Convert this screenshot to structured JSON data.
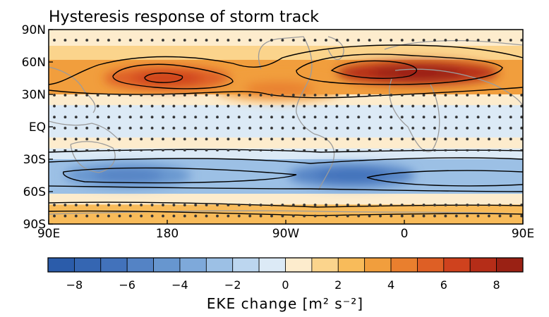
{
  "chart_data": {
    "type": "heatmap",
    "title": "Hysteresis response of storm track",
    "x_ticks": [
      "90E",
      "180",
      "90W",
      "0",
      "90E"
    ],
    "y_ticks": [
      "90N",
      "60N",
      "30N",
      "EQ",
      "30S",
      "60S",
      "90S"
    ],
    "colorbar": {
      "label": "EKE change [m² s⁻²]",
      "range": [
        -9,
        9
      ],
      "step": 1,
      "tick_values": [
        -8,
        -6,
        -4,
        -2,
        0,
        2,
        4,
        6,
        8
      ],
      "tick_labels": [
        "−8",
        "−6",
        "−4",
        "−2",
        "0",
        "2",
        "4",
        "6",
        "8"
      ],
      "colors": [
        "#2b5caa",
        "#3566b2",
        "#4272bb",
        "#5483c5",
        "#6796cf",
        "#7ea9da",
        "#9cc0e5",
        "#bcd6ef",
        "#dceaf6",
        "#fdeccd",
        "#fbd48c",
        "#f8bb5a",
        "#f19e3d",
        "#e97f2e",
        "#de5f25",
        "#cf421e",
        "#b52d18",
        "#9a2114"
      ]
    },
    "zonal_bands": [
      {
        "lat_range": [
          75,
          90
        ],
        "value": 0.4
      },
      {
        "lat_range": [
          62,
          75
        ],
        "value": 1.5
      },
      {
        "lat_range": [
          30,
          62
        ],
        "value": 3.5
      },
      {
        "lat_range": [
          20,
          30
        ],
        "value": 0.5
      },
      {
        "lat_range": [
          -10,
          20
        ],
        "value": -0.4
      },
      {
        "lat_range": [
          -20,
          -10
        ],
        "value": 0.4
      },
      {
        "lat_range": [
          -30,
          -20
        ],
        "value": -0.6
      },
      {
        "lat_range": [
          -62,
          -30
        ],
        "value": -3.0
      },
      {
        "lat_range": [
          -72,
          -62
        ],
        "value": 0.8
      },
      {
        "lat_range": [
          -90,
          -72
        ],
        "value": 2.5
      }
    ],
    "maxima": [
      {
        "lon": 180,
        "lat": 45,
        "value": 5.5
      },
      {
        "lon": 10,
        "lat": 50,
        "value": 7.5
      },
      {
        "lon": -95,
        "lat": 35,
        "value": 3.5
      }
    ],
    "minima": [
      {
        "lon": -40,
        "lat": -45,
        "value": -5.5
      },
      {
        "lon": 150,
        "lat": -45,
        "value": -4.5
      }
    ],
    "stippling": "dots mark statistically significant regions",
    "background_map": "continent coastlines in gray"
  }
}
